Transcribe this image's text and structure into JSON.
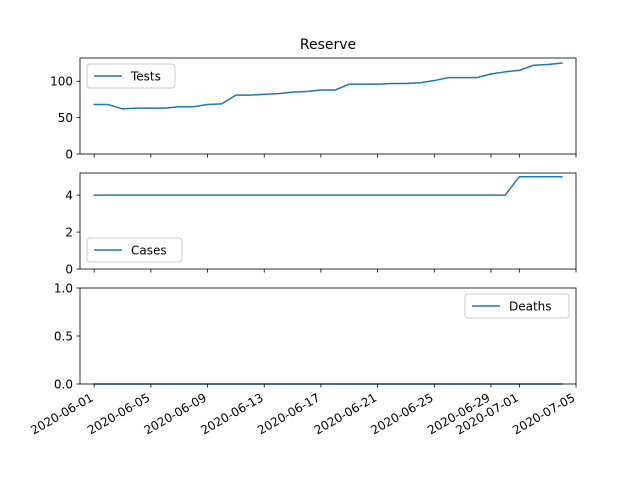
{
  "chart_data": {
    "type": "line",
    "title": "Reserve",
    "color": "#1f77b4",
    "x": [
      "2020-06-01",
      "2020-06-02",
      "2020-06-03",
      "2020-06-04",
      "2020-06-05",
      "2020-06-06",
      "2020-06-07",
      "2020-06-08",
      "2020-06-09",
      "2020-06-10",
      "2020-06-11",
      "2020-06-12",
      "2020-06-13",
      "2020-06-14",
      "2020-06-15",
      "2020-06-16",
      "2020-06-17",
      "2020-06-18",
      "2020-06-19",
      "2020-06-20",
      "2020-06-21",
      "2020-06-22",
      "2020-06-23",
      "2020-06-24",
      "2020-06-25",
      "2020-06-26",
      "2020-06-27",
      "2020-06-28",
      "2020-06-29",
      "2020-06-30",
      "2020-07-01",
      "2020-07-02",
      "2020-07-03",
      "2020-07-04"
    ],
    "x_ticks": [
      "2020-06-01",
      "2020-06-05",
      "2020-06-09",
      "2020-06-13",
      "2020-06-17",
      "2020-06-21",
      "2020-06-25",
      "2020-06-29",
      "2020-07-01",
      "2020-07-05"
    ],
    "tick_label_rotation": 30,
    "xlim": [
      "2020-05-31",
      "2020-07-05"
    ],
    "grid": false,
    "panels": [
      {
        "series": [
          {
            "name": "Tests",
            "values": [
              68,
              68,
              62,
              63,
              63,
              63,
              65,
              65,
              68,
              69,
              81,
              81,
              82,
              83,
              85,
              86,
              88,
              88,
              96,
              96,
              96,
              97,
              97,
              98,
              101,
              105,
              105,
              105,
              110,
              113,
              115,
              122,
              123,
              125
            ]
          }
        ],
        "ylim": [
          0,
          132
        ],
        "y_ticks": [
          0,
          50,
          100
        ],
        "legend": "upper left",
        "show_x_labels": false
      },
      {
        "series": [
          {
            "name": "Cases",
            "values": [
              4,
              4,
              4,
              4,
              4,
              4,
              4,
              4,
              4,
              4,
              4,
              4,
              4,
              4,
              4,
              4,
              4,
              4,
              4,
              4,
              4,
              4,
              4,
              4,
              4,
              4,
              4,
              4,
              4,
              4,
              5,
              5,
              5,
              5
            ]
          }
        ],
        "ylim": [
          0,
          5.2
        ],
        "y_ticks": [
          0,
          2,
          4
        ],
        "legend": "lower left",
        "show_x_labels": false
      },
      {
        "series": [
          {
            "name": "Deaths",
            "values": [
              0,
              0,
              0,
              0,
              0,
              0,
              0,
              0,
              0,
              0,
              0,
              0,
              0,
              0,
              0,
              0,
              0,
              0,
              0,
              0,
              0,
              0,
              0,
              0,
              0,
              0,
              0,
              0,
              0,
              0,
              0,
              0,
              0,
              0
            ]
          }
        ],
        "ylim": [
          0,
          1
        ],
        "y_ticks": [
          "0.0",
          "0.5",
          "1.0"
        ],
        "legend": "upper right",
        "show_x_labels": true
      }
    ]
  }
}
